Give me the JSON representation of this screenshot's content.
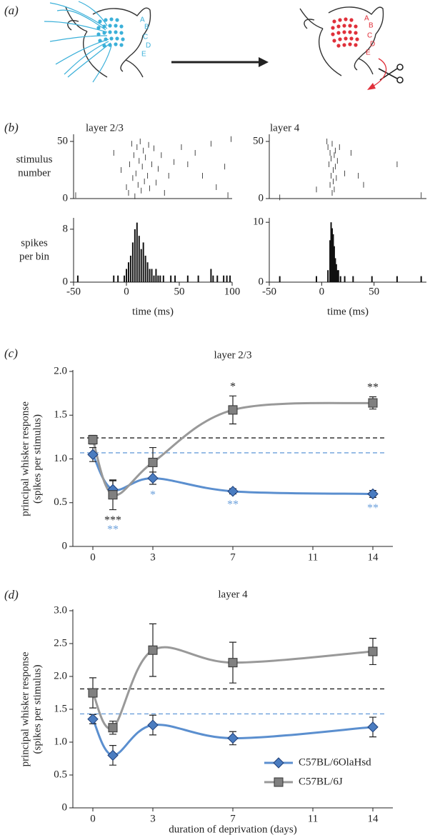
{
  "panel_labels": [
    "(a)",
    "(b)",
    "(c)",
    "(d)"
  ],
  "illustration": {
    "rows_before": [
      "A",
      "B",
      "C",
      "D",
      "E"
    ],
    "rows_after": [
      "A",
      "B",
      "C",
      "D",
      "E"
    ]
  },
  "chart_data": [
    {
      "type": "raster",
      "title": "layer 2/3",
      "ylabel": [
        "stimulus",
        "number"
      ],
      "color": "#333333",
      "x": [
        -48,
        -12,
        -5,
        0,
        2,
        3,
        5,
        6,
        7,
        8,
        9,
        10,
        11,
        12,
        13,
        14,
        15,
        16,
        17,
        18,
        20,
        21,
        22,
        24,
        26,
        28,
        30,
        33,
        36,
        40,
        45,
        52,
        58,
        65,
        72,
        80,
        85,
        93,
        96,
        99
      ],
      "y": [
        3,
        40,
        25,
        10,
        5,
        30,
        48,
        18,
        38,
        2,
        22,
        45,
        12,
        33,
        50,
        7,
        28,
        42,
        15,
        36,
        20,
        47,
        9,
        30,
        44,
        14,
        26,
        38,
        5,
        20,
        32,
        45,
        30,
        40,
        20,
        48,
        10,
        28,
        3,
        52
      ],
      "xlim": [
        -50,
        100
      ],
      "ylim": [
        0,
        55
      ],
      "yticks": [
        0,
        50
      ]
    },
    {
      "type": "raster",
      "title": "layer 4",
      "color": "#333333",
      "x": [
        -40,
        -5,
        5,
        6,
        7,
        8,
        8,
        9,
        9,
        10,
        10,
        11,
        11,
        12,
        12,
        13,
        13,
        14,
        15,
        17,
        22,
        28,
        35,
        40,
        72,
        95
      ],
      "y": [
        1,
        8,
        50,
        45,
        30,
        40,
        12,
        20,
        35,
        5,
        48,
        25,
        15,
        38,
        8,
        42,
        28,
        18,
        33,
        45,
        22,
        40,
        20,
        12,
        30,
        3
      ],
      "xlim": [
        -50,
        100
      ],
      "ylim": [
        0,
        55
      ],
      "yticks": [
        0,
        50
      ]
    },
    {
      "type": "spike-histogram",
      "ylabel": [
        "spikes",
        "per bin"
      ],
      "xlabel": "time (ms)",
      "color": "#111111",
      "x": [
        -46,
        -12,
        -8,
        -2,
        0,
        2,
        4,
        6,
        8,
        10,
        12,
        14,
        16,
        18,
        20,
        22,
        24,
        26,
        28,
        30,
        32,
        35,
        42,
        46,
        58,
        68,
        80,
        82,
        86,
        92,
        95,
        98
      ],
      "values": [
        1,
        1,
        1,
        1,
        2,
        3,
        4,
        6,
        8,
        9,
        7,
        5,
        6,
        4,
        3,
        2,
        2,
        1,
        2,
        1,
        1,
        1,
        1,
        1,
        1,
        1,
        2,
        1,
        1,
        1,
        1,
        1
      ],
      "xlim": [
        -50,
        100
      ],
      "xticks": [
        -50,
        0,
        50,
        100
      ],
      "ylim": [
        0,
        9.5
      ],
      "yticks": [
        0,
        8
      ]
    },
    {
      "type": "spike-histogram",
      "xlabel": "time (ms)",
      "color": "#111111",
      "x": [
        -40,
        -5,
        6,
        8,
        9,
        10,
        11,
        12,
        13,
        14,
        15,
        16,
        18,
        22,
        30,
        48,
        72,
        95
      ],
      "values": [
        1,
        1,
        2,
        7,
        10,
        9,
        8,
        6,
        4,
        3,
        2,
        2,
        1,
        1,
        1,
        1,
        1,
        1
      ],
      "xlim": [
        -50,
        100
      ],
      "xticks": [
        -50,
        0,
        50
      ],
      "ylim": [
        0,
        10.5
      ],
      "yticks": [
        0,
        10
      ]
    },
    {
      "type": "line",
      "title": "layer 2/3",
      "ylabel": [
        "principal whisker response",
        "(spikes per stimulus)"
      ],
      "x": [
        0,
        1,
        3,
        7,
        14
      ],
      "series": [
        {
          "color": "#5b8fcf",
          "marker": "diamond",
          "marker_color": "#4a7cc0",
          "values": [
            1.05,
            0.65,
            0.78,
            0.63,
            0.6
          ],
          "errors": [
            0.08,
            0.1,
            0.07,
            0.03,
            0.04
          ]
        },
        {
          "color": "#999999",
          "marker": "square",
          "marker_color": "#808080",
          "values": [
            1.22,
            0.59,
            0.96,
            1.56,
            1.64
          ],
          "errors": [
            0.05,
            0.17,
            0.17,
            0.16,
            0.07
          ]
        }
      ],
      "reference_lines": [
        {
          "value": 1.24,
          "color": "#222222"
        },
        {
          "value": 1.07,
          "color": "#6a9fdb"
        }
      ],
      "annotations": [
        {
          "text": "***",
          "x": 1,
          "color": "#222222",
          "position": "below"
        },
        {
          "text": "**",
          "x": 1,
          "color": "#6a9fdb",
          "position": "below"
        },
        {
          "text": "*",
          "x": 3,
          "color": "#6a9fdb",
          "position": "below"
        },
        {
          "text": "*",
          "x": 7,
          "color": "#222222",
          "position": "above"
        },
        {
          "text": "**",
          "x": 7,
          "color": "#6a9fdb",
          "position": "below"
        },
        {
          "text": "**",
          "x": 14,
          "color": "#222222",
          "position": "above"
        },
        {
          "text": "**",
          "x": 14,
          "color": "#6a9fdb",
          "position": "below"
        }
      ],
      "xlim": [
        -1,
        15
      ],
      "xticks": [
        0,
        3,
        7,
        11,
        14
      ],
      "ylim": [
        0,
        2
      ],
      "yticks": [
        0,
        0.5,
        {
          "value": 1,
          "label": "1.0"
        },
        1.5,
        {
          "value": 2,
          "label": "2.0"
        }
      ]
    },
    {
      "type": "line",
      "title": "layer 4",
      "ylabel": [
        "principal whisker response",
        "(spikes per stimulus)"
      ],
      "xlabel": "duration of deprivation (days)",
      "x": [
        0,
        1,
        3,
        7,
        14
      ],
      "series": [
        {
          "name": "C57BL/6OlaHsd",
          "color": "#5b8fcf",
          "marker": "diamond",
          "marker_color": "#4a7cc0",
          "values": [
            1.35,
            0.8,
            1.26,
            1.06,
            1.23
          ],
          "errors": [
            0.07,
            0.15,
            0.15,
            0.1,
            0.15
          ]
        },
        {
          "name": "C57BL/6J",
          "color": "#999999",
          "marker": "square",
          "marker_color": "#808080",
          "values": [
            1.75,
            1.22,
            2.4,
            2.21,
            2.38
          ],
          "errors": [
            0.23,
            0.1,
            0.4,
            0.31,
            0.2
          ]
        }
      ],
      "reference_lines": [
        {
          "value": 1.81,
          "color": "#222222"
        },
        {
          "value": 1.43,
          "color": "#6a9fdb"
        }
      ],
      "legend": "lower right",
      "xlim": [
        -1,
        15
      ],
      "xticks": [
        0,
        3,
        7,
        11,
        14
      ],
      "ylim": [
        0,
        3
      ],
      "yticks": [
        0,
        0.5,
        {
          "value": 1,
          "label": "1.0"
        },
        1.5,
        {
          "value": 2,
          "label": "2.0"
        },
        2.5,
        {
          "value": 3,
          "label": "3.0"
        }
      ]
    }
  ]
}
